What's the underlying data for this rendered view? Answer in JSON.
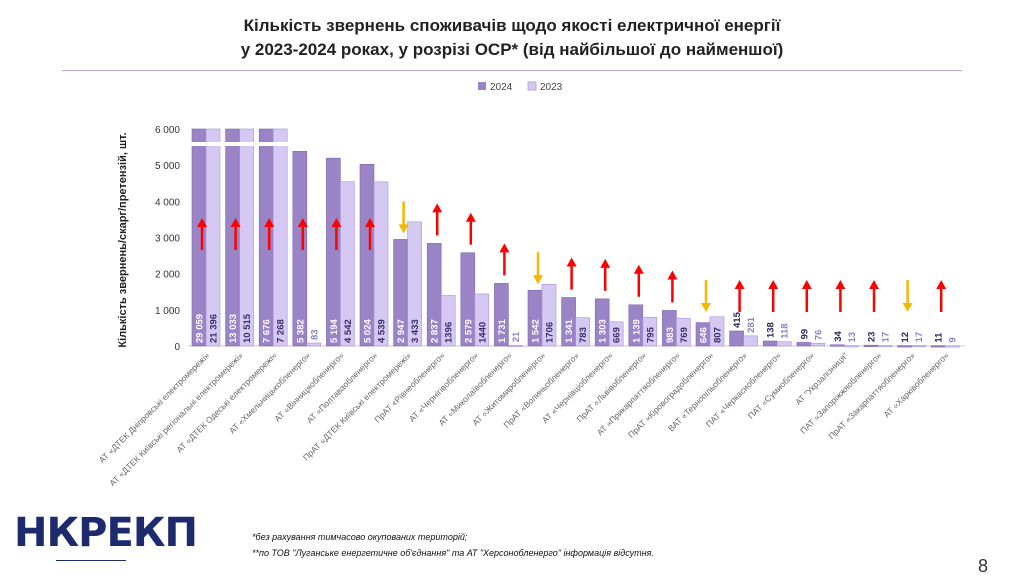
{
  "header": {
    "title_line1": "Кількість звернень споживачів щодо якості електричної енергії",
    "title_line2": "у 2023-2024 роках, у розрізі ОСР* (від найбільшої до найменшої)"
  },
  "footer": {
    "note1": "*без рахування тимчасово окупованих територій;",
    "note2": "**по ТОВ \"Луганське енергетичне об'єднання\" та АТ \"Херсонобленерго\" інформація відсутня.",
    "page_number": "8",
    "logo_text": "НКРЕКП"
  },
  "chart_data": {
    "type": "bar",
    "title": "",
    "ylabel": "Кількість звернень/скарг/претензій, шт.",
    "xlabel": "",
    "ylim": [
      0,
      6000
    ],
    "yticks": [
      "0",
      "1 000",
      "2 000",
      "3 000",
      "4 000",
      "5 000",
      "6 000"
    ],
    "axis_break": true,
    "legend_position": "top",
    "grid": false,
    "colors": {
      "2024": "#9b84c6",
      "2023": "#d5c8f2",
      "up_arrow": "#ff0000",
      "down_arrow": "#f5b800"
    },
    "categories": [
      "АТ «ДТЕК Дніпровські електромережі»",
      "АТ «ДТЕК Київські регіональні електромережі»",
      "АТ «ДТЕК Одеські електромережі»",
      "АТ «Хмельницькобленерго»",
      "АТ «Вінницяобленерго»",
      "АТ «Полтаваобленерго»",
      "ПрАТ «ДТЕК Київські електромережі»",
      "ПрАТ «Рівнеобленерго»",
      "АТ «Чернігівобленерго»",
      "АТ «Миколаївобленерго»",
      "АТ «Житомиробленерго»",
      "ПрАТ «Волиньобленерго»",
      "АТ «Чернівціобленерго»",
      "ПрАТ «Львівобленерго»",
      "АТ «Прикарпаттяобленерго»",
      "ПрАТ «Кіровоградобленерго»",
      "ВАТ «Тернопільобленерго»",
      "ПАТ «Черкасиобленерго»",
      "ПАТ «Сумиобленерго»",
      "АТ \"Укрзалізниця\"",
      "ПАТ «Запоріжжяобленерго»",
      "ПрАТ «Закарпаттяобленерго»",
      "АТ «Харківобленерго»"
    ],
    "series": [
      {
        "name": "2024",
        "values": [
          29059,
          13033,
          7676,
          5382,
          5194,
          5024,
          2947,
          2837,
          2579,
          1731,
          1542,
          1341,
          1303,
          1139,
          983,
          646,
          415,
          138,
          99,
          34,
          23,
          12,
          11
        ],
        "labels": [
          "29 059",
          "13 033",
          "7 676",
          "5 382",
          "5 194",
          "5 024",
          "2 947",
          "2 837",
          "2 579",
          "1 731",
          "1 542",
          "1 341",
          "1 303",
          "1 139",
          "983",
          "646",
          "415",
          "138",
          "99",
          "34",
          "23",
          "12",
          "11"
        ]
      },
      {
        "name": "2023",
        "values": [
          21396,
          10515,
          7268,
          83,
          4542,
          4539,
          3433,
          1396,
          1440,
          21,
          1706,
          783,
          669,
          795,
          769,
          807,
          281,
          118,
          76,
          13,
          17,
          17,
          9
        ],
        "labels": [
          "21 396",
          "10 515",
          "7 268",
          "83",
          "4 542",
          "4 539",
          "3 433",
          "1396",
          "1440",
          "21",
          "1706",
          "783",
          "669",
          "795",
          "769",
          "807",
          "281",
          "118",
          "76",
          "13",
          "17",
          "17",
          "9"
        ]
      }
    ]
  }
}
